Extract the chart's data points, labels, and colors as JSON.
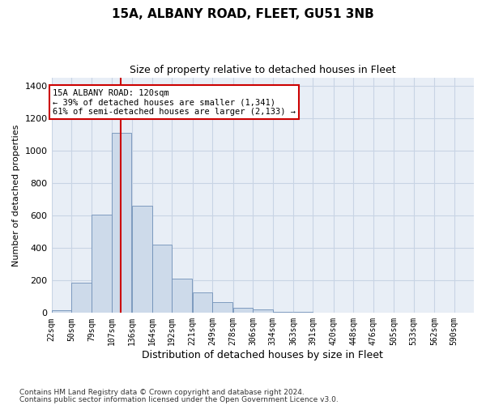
{
  "title": "15A, ALBANY ROAD, FLEET, GU51 3NB",
  "subtitle": "Size of property relative to detached houses in Fleet",
  "xlabel": "Distribution of detached houses by size in Fleet",
  "ylabel": "Number of detached properties",
  "bar_color": "#cddaea",
  "bar_edge_color": "#7090b8",
  "bin_edges": [
    22,
    50,
    79,
    107,
    136,
    164,
    192,
    221,
    249,
    278,
    306,
    334,
    363,
    391,
    420,
    448,
    476,
    505,
    533,
    562,
    590
  ],
  "bin_heights": [
    15,
    185,
    605,
    1110,
    660,
    420,
    210,
    125,
    68,
    30,
    20,
    8,
    5,
    2,
    0,
    0,
    0,
    0,
    0,
    0
  ],
  "tick_labels": [
    "22sqm",
    "50sqm",
    "79sqm",
    "107sqm",
    "136sqm",
    "164sqm",
    "192sqm",
    "221sqm",
    "249sqm",
    "278sqm",
    "306sqm",
    "334sqm",
    "363sqm",
    "391sqm",
    "420sqm",
    "448sqm",
    "476sqm",
    "505sqm",
    "533sqm",
    "562sqm",
    "590sqm"
  ],
  "ylim": [
    0,
    1450
  ],
  "yticks": [
    0,
    200,
    400,
    600,
    800,
    1000,
    1200,
    1400
  ],
  "red_line_x": 120,
  "annotation_text": "15A ALBANY ROAD: 120sqm\n← 39% of detached houses are smaller (1,341)\n61% of semi-detached houses are larger (2,133) →",
  "annotation_box_facecolor": "#ffffff",
  "annotation_box_edgecolor": "#cc0000",
  "footnote1": "Contains HM Land Registry data © Crown copyright and database right 2024.",
  "footnote2": "Contains public sector information licensed under the Open Government Licence v3.0.",
  "grid_color": "#c8d4e4",
  "background_color": "#e8eef6",
  "title_fontsize": 11,
  "subtitle_fontsize": 9,
  "ylabel_fontsize": 8,
  "xlabel_fontsize": 9
}
